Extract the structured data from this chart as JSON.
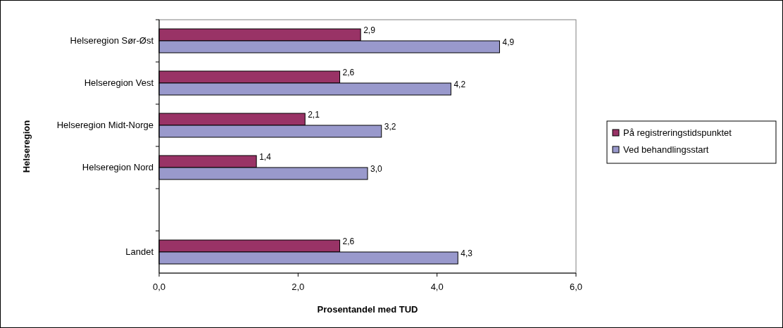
{
  "chart_data": {
    "type": "bar",
    "orientation": "horizontal",
    "xlabel": "Prosentandel med TUD",
    "ylabel": "Helseregion",
    "categories": [
      "Helseregion Sør-Øst",
      "Helseregion Vest",
      "Helseregion Midt-Norge",
      "Helseregion Nord",
      null,
      "Landet"
    ],
    "series": [
      {
        "name": "På registreringstidspunktet",
        "color": "#993366",
        "values": [
          2.9,
          2.6,
          2.1,
          1.4,
          null,
          2.6
        ],
        "value_labels": [
          "2,9",
          "2,6",
          "2,1",
          "1,4",
          null,
          "2,6"
        ]
      },
      {
        "name": "Ved behandlingsstart",
        "color": "#9999cc",
        "values": [
          4.9,
          4.2,
          3.2,
          3.0,
          null,
          4.3
        ],
        "value_labels": [
          "4,9",
          "4,2",
          "3,2",
          "3,0",
          null,
          "4,3"
        ]
      }
    ],
    "xlim": [
      0,
      6
    ],
    "xticks": [
      {
        "value": 0,
        "label": "0,0"
      },
      {
        "value": 2,
        "label": "2,0"
      },
      {
        "value": 4,
        "label": "4,0"
      },
      {
        "value": 6,
        "label": "6,0"
      }
    ],
    "grid": false,
    "legend": "right"
  }
}
